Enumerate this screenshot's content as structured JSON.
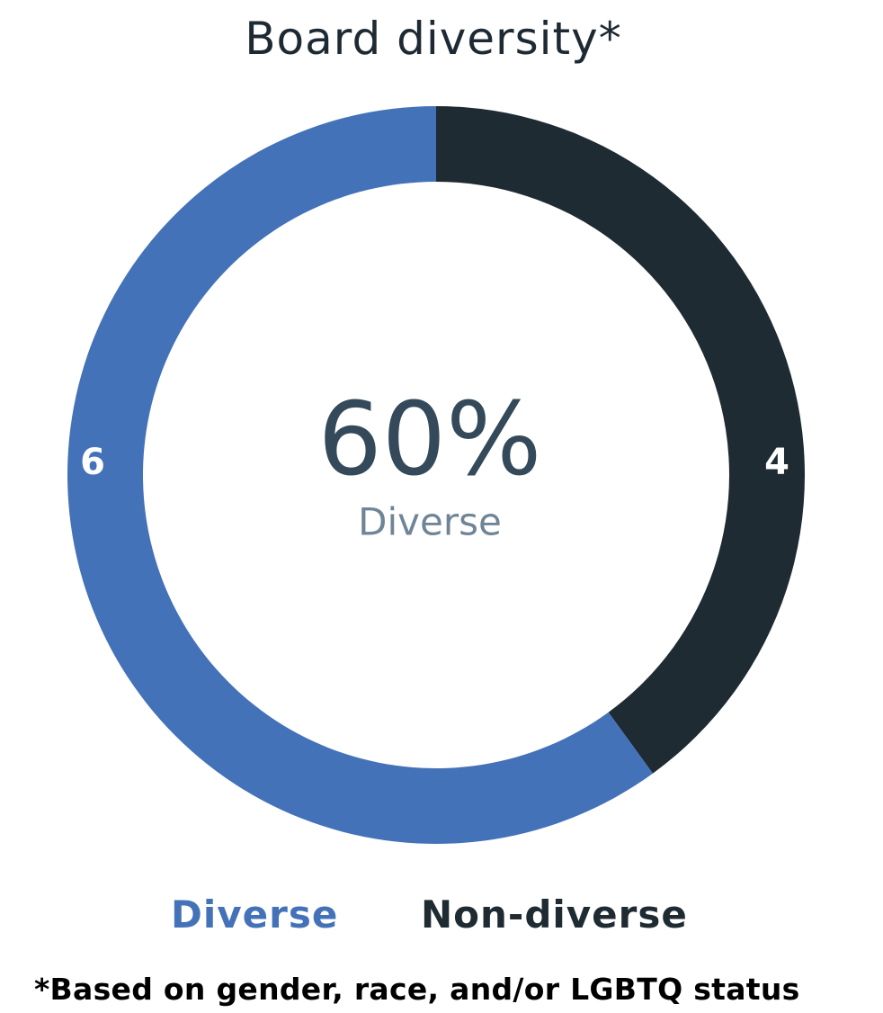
{
  "chart_data": {
    "type": "pie",
    "style": "donut",
    "title": "Board diversity*",
    "center_value": "60%",
    "center_label": "Diverse",
    "slices": [
      {
        "label": "Diverse",
        "value": 6,
        "value_label": "6",
        "color": "#4472b8"
      },
      {
        "label": "Non-diverse",
        "value": 4,
        "value_label": "4",
        "color": "#1f2b33"
      }
    ],
    "legend": [
      {
        "label": "Diverse",
        "color": "#4472b8"
      },
      {
        "label": "Non-diverse",
        "color": "#1f2b33"
      }
    ],
    "legend_position": "bottom",
    "footnote": "*Based on gender, race, and/or LGBTQ status"
  },
  "colors": {
    "title": "#1e2a33",
    "center_value": "#34495a",
    "center_label": "#6f8597",
    "slice_label": "#ffffff"
  }
}
